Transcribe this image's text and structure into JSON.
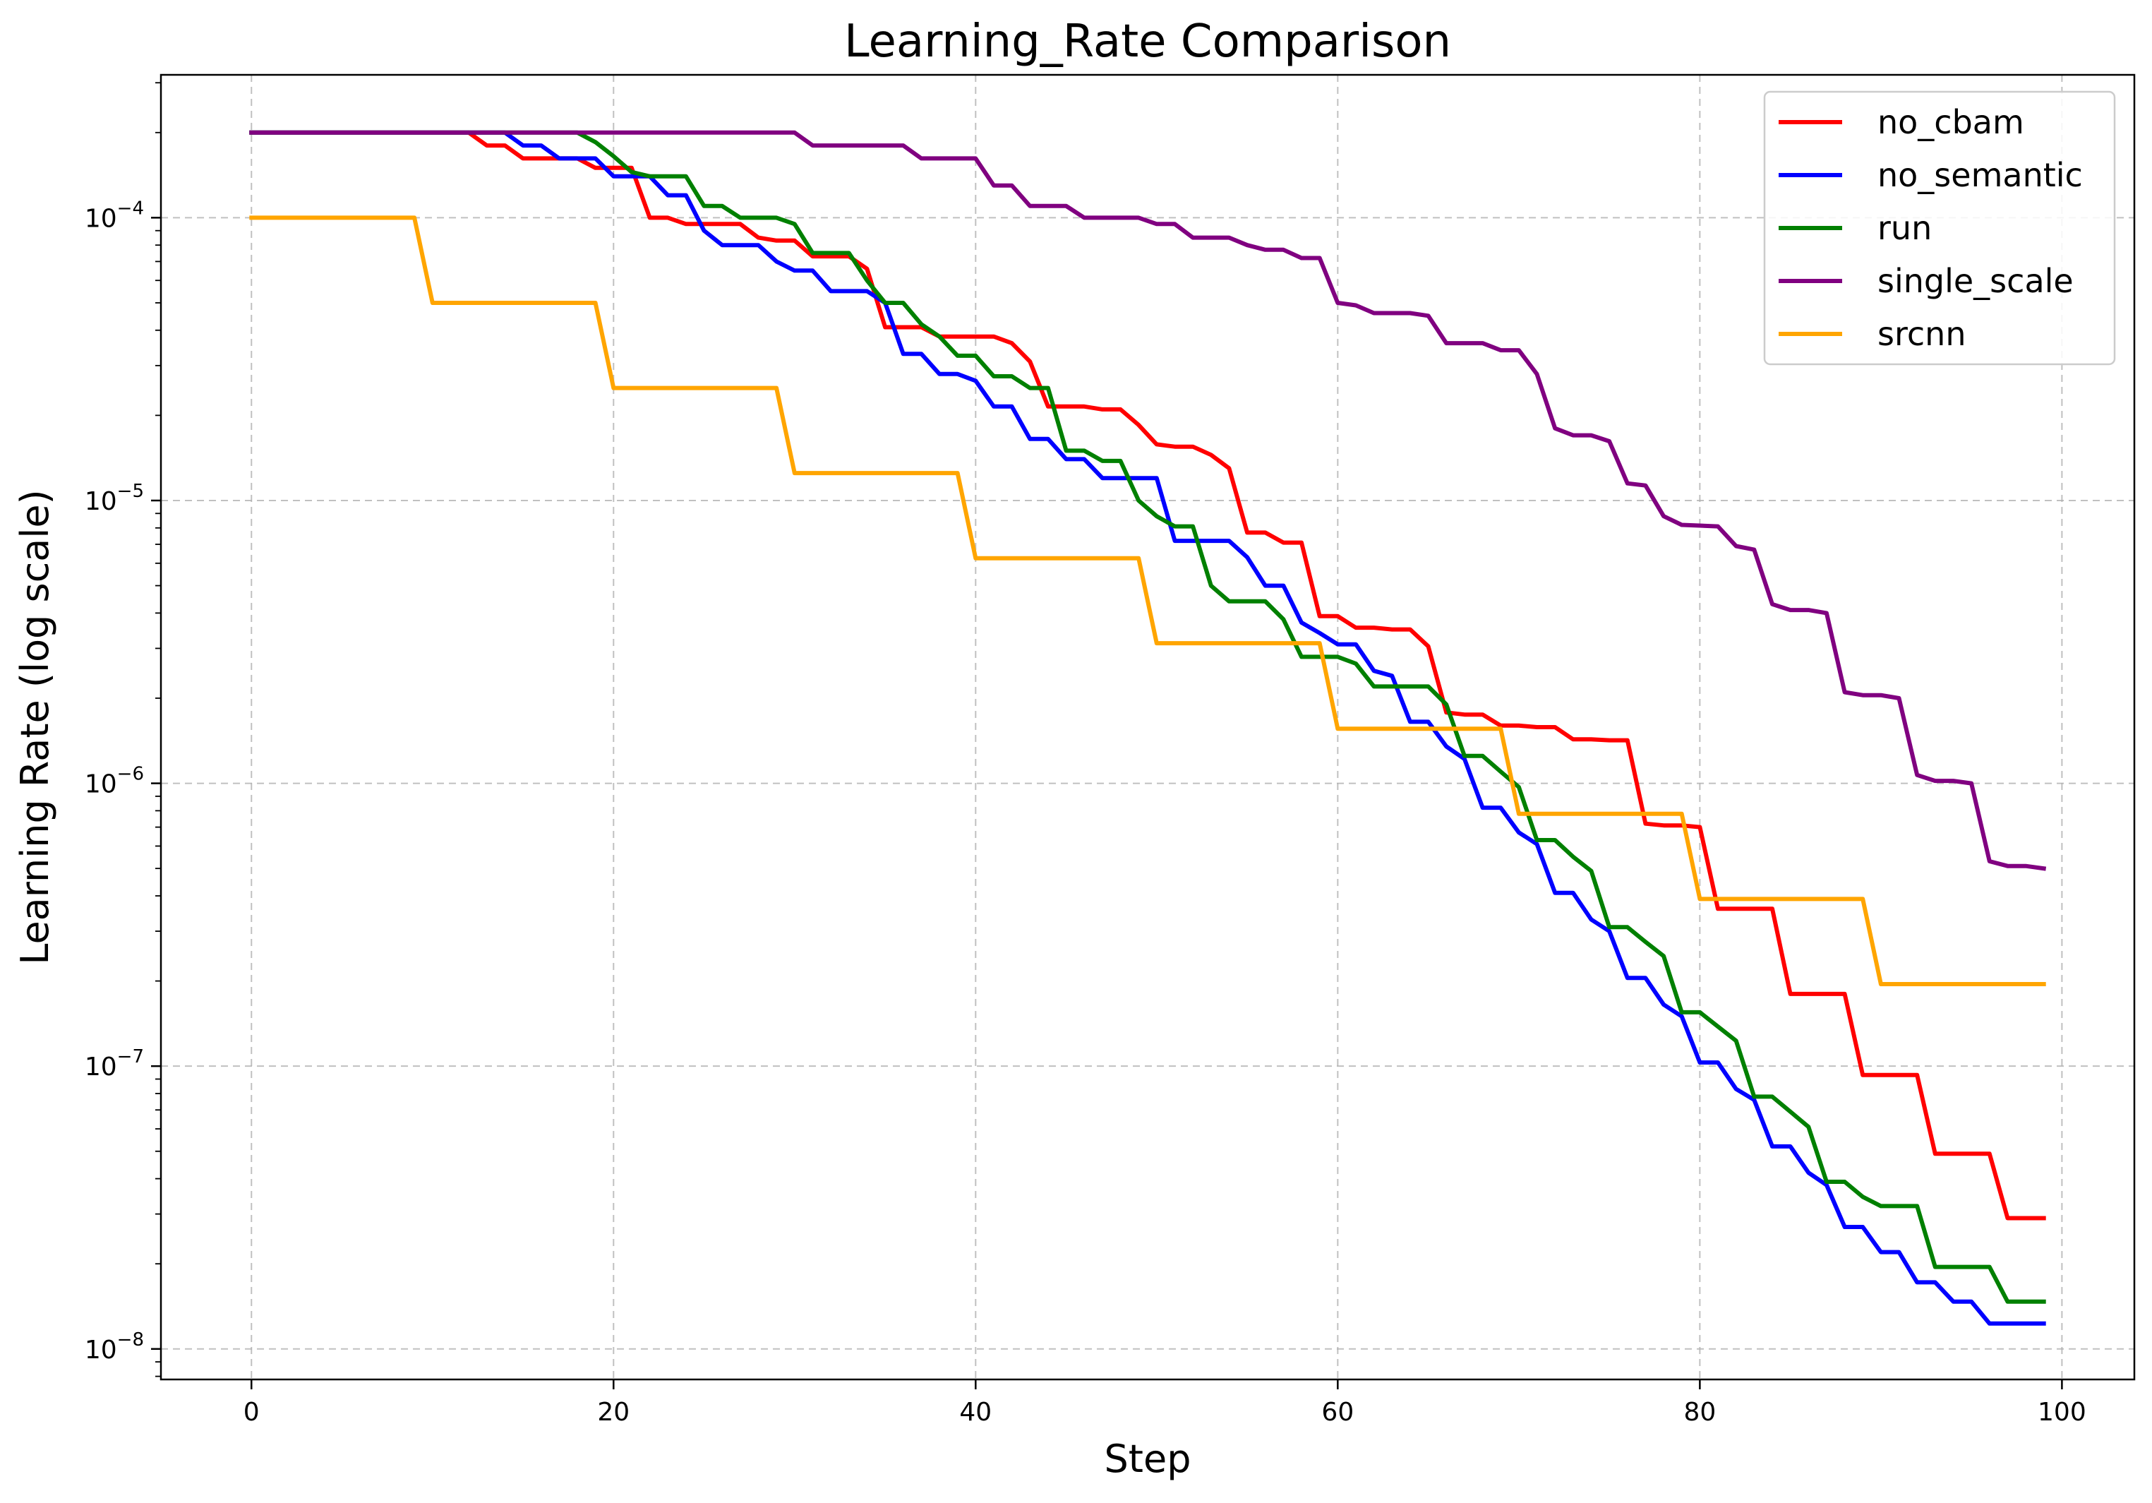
{
  "chart_data": {
    "type": "line",
    "title": "Learning_Rate Comparison",
    "xlabel": "Step",
    "ylabel": "Learning Rate (log scale)",
    "yscale": "log",
    "xlim": [
      -5,
      104
    ],
    "ylim": [
      7.8e-09,
      0.00032
    ],
    "xticks": [
      0,
      20,
      40,
      60,
      80,
      100
    ],
    "xtick_labels": [
      "0",
      "20",
      "40",
      "60",
      "80",
      "100"
    ],
    "yticks": [
      1e-08,
      1e-07,
      1e-06,
      1e-05,
      0.0001
    ],
    "ytick_labels": [
      {
        "base": "10",
        "exp": "−8"
      },
      {
        "base": "10",
        "exp": "−7"
      },
      {
        "base": "10",
        "exp": "−6"
      },
      {
        "base": "10",
        "exp": "−5"
      },
      {
        "base": "10",
        "exp": "−4"
      }
    ],
    "grid": true,
    "legend_position": "top-right",
    "series": [
      {
        "name": "no_cbam",
        "color": "#ff0000",
        "points": [
          [
            0,
            0.0002
          ],
          [
            12,
            0.0002
          ],
          [
            13,
            0.00018
          ],
          [
            14,
            0.00018
          ],
          [
            15,
            0.000162
          ],
          [
            17,
            0.000162
          ],
          [
            18,
            0.000162
          ],
          [
            19,
            0.00015
          ],
          [
            20,
            0.00015
          ],
          [
            21,
            0.00015
          ],
          [
            22,
            0.0001
          ],
          [
            23,
            0.0001
          ],
          [
            24,
            9.5e-05
          ],
          [
            27,
            9.5e-05
          ],
          [
            28,
            8.5e-05
          ],
          [
            29,
            8.3e-05
          ],
          [
            30,
            8.3e-05
          ],
          [
            31,
            7.3e-05
          ],
          [
            33,
            7.3e-05
          ],
          [
            34,
            6.6e-05
          ],
          [
            35,
            4.1e-05
          ],
          [
            37,
            4.1e-05
          ],
          [
            38,
            3.8e-05
          ],
          [
            41,
            3.8e-05
          ],
          [
            42,
            3.6e-05
          ],
          [
            43,
            3.1e-05
          ],
          [
            44,
            2.15e-05
          ],
          [
            46,
            2.15e-05
          ],
          [
            47,
            2.1e-05
          ],
          [
            48,
            2.1e-05
          ],
          [
            49,
            1.85e-05
          ],
          [
            50,
            1.58e-05
          ],
          [
            51,
            1.55e-05
          ],
          [
            52,
            1.55e-05
          ],
          [
            53,
            1.45e-05
          ],
          [
            54,
            1.3e-05
          ],
          [
            55,
            7.7e-06
          ],
          [
            56,
            7.7e-06
          ],
          [
            57,
            7.1e-06
          ],
          [
            58,
            7.1e-06
          ],
          [
            59,
            3.9e-06
          ],
          [
            60,
            3.9e-06
          ],
          [
            61,
            3.55e-06
          ],
          [
            62,
            3.55e-06
          ],
          [
            63,
            3.5e-06
          ],
          [
            64,
            3.5e-06
          ],
          [
            65,
            3.05e-06
          ],
          [
            66,
            1.78e-06
          ],
          [
            67,
            1.75e-06
          ],
          [
            68,
            1.75e-06
          ],
          [
            69,
            1.6e-06
          ],
          [
            70,
            1.6e-06
          ],
          [
            71,
            1.58e-06
          ],
          [
            72,
            1.58e-06
          ],
          [
            73,
            1.43e-06
          ],
          [
            74,
            1.43e-06
          ],
          [
            75,
            1.42e-06
          ],
          [
            76,
            1.42e-06
          ],
          [
            77,
            7.2e-07
          ],
          [
            78,
            7.1e-07
          ],
          [
            79,
            7.1e-07
          ],
          [
            80,
            7e-07
          ],
          [
            81,
            3.6e-07
          ],
          [
            84,
            3.6e-07
          ],
          [
            85,
            1.8e-07
          ],
          [
            88,
            1.8e-07
          ],
          [
            89,
            9.3e-08
          ],
          [
            92,
            9.3e-08
          ],
          [
            93,
            4.9e-08
          ],
          [
            96,
            4.9e-08
          ],
          [
            97,
            2.9e-08
          ],
          [
            99,
            2.9e-08
          ]
        ]
      },
      {
        "name": "no_semantic",
        "color": "#0000ff",
        "points": [
          [
            0,
            0.0002
          ],
          [
            14,
            0.0002
          ],
          [
            15,
            0.00018
          ],
          [
            16,
            0.00018
          ],
          [
            17,
            0.000162
          ],
          [
            19,
            0.000162
          ],
          [
            20,
            0.00014
          ],
          [
            22,
            0.00014
          ],
          [
            23,
            0.00012
          ],
          [
            24,
            0.00012
          ],
          [
            25,
            9e-05
          ],
          [
            26,
            8e-05
          ],
          [
            28,
            8e-05
          ],
          [
            29,
            7e-05
          ],
          [
            30,
            6.5e-05
          ],
          [
            31,
            6.5e-05
          ],
          [
            32,
            5.5e-05
          ],
          [
            34,
            5.5e-05
          ],
          [
            35,
            5e-05
          ],
          [
            36,
            3.3e-05
          ],
          [
            37,
            3.3e-05
          ],
          [
            38,
            2.8e-05
          ],
          [
            39,
            2.8e-05
          ],
          [
            40,
            2.65e-05
          ],
          [
            41,
            2.15e-05
          ],
          [
            42,
            2.15e-05
          ],
          [
            43,
            1.65e-05
          ],
          [
            44,
            1.65e-05
          ],
          [
            45,
            1.4e-05
          ],
          [
            46,
            1.4e-05
          ],
          [
            47,
            1.2e-05
          ],
          [
            50,
            1.2e-05
          ],
          [
            51,
            7.2e-06
          ],
          [
            54,
            7.2e-06
          ],
          [
            55,
            6.3e-06
          ],
          [
            56,
            5e-06
          ],
          [
            57,
            5e-06
          ],
          [
            58,
            3.7e-06
          ],
          [
            59,
            3.4e-06
          ],
          [
            60,
            3.1e-06
          ],
          [
            61,
            3.1e-06
          ],
          [
            62,
            2.5e-06
          ],
          [
            63,
            2.4e-06
          ],
          [
            64,
            1.65e-06
          ],
          [
            65,
            1.65e-06
          ],
          [
            66,
            1.35e-06
          ],
          [
            67,
            1.22e-06
          ],
          [
            68,
            8.2e-07
          ],
          [
            69,
            8.2e-07
          ],
          [
            70,
            6.7e-07
          ],
          [
            71,
            6.1e-07
          ],
          [
            72,
            4.1e-07
          ],
          [
            73,
            4.1e-07
          ],
          [
            74,
            3.3e-07
          ],
          [
            75,
            3e-07
          ],
          [
            76,
            2.05e-07
          ],
          [
            77,
            2.05e-07
          ],
          [
            78,
            1.65e-07
          ],
          [
            79,
            1.5e-07
          ],
          [
            80,
            1.03e-07
          ],
          [
            81,
            1.03e-07
          ],
          [
            82,
            8.3e-08
          ],
          [
            83,
            7.6e-08
          ],
          [
            84,
            5.2e-08
          ],
          [
            85,
            5.2e-08
          ],
          [
            86,
            4.2e-08
          ],
          [
            87,
            3.8e-08
          ],
          [
            88,
            2.7e-08
          ],
          [
            89,
            2.7e-08
          ],
          [
            90,
            2.2e-08
          ],
          [
            91,
            2.2e-08
          ],
          [
            92,
            1.72e-08
          ],
          [
            93,
            1.72e-08
          ],
          [
            94,
            1.47e-08
          ],
          [
            95,
            1.47e-08
          ],
          [
            96,
            1.23e-08
          ],
          [
            99,
            1.23e-08
          ]
        ]
      },
      {
        "name": "run",
        "color": "#008000",
        "points": [
          [
            0,
            0.0002
          ],
          [
            18,
            0.0002
          ],
          [
            19,
            0.000185
          ],
          [
            20,
            0.000165
          ],
          [
            21,
            0.000145
          ],
          [
            22,
            0.00014
          ],
          [
            24,
            0.00014
          ],
          [
            25,
            0.00011
          ],
          [
            26,
            0.00011
          ],
          [
            27,
            0.0001
          ],
          [
            29,
            0.0001
          ],
          [
            30,
            9.5e-05
          ],
          [
            31,
            7.5e-05
          ],
          [
            33,
            7.5e-05
          ],
          [
            34,
            6e-05
          ],
          [
            35,
            5e-05
          ],
          [
            36,
            5e-05
          ],
          [
            37,
            4.2e-05
          ],
          [
            38,
            3.8e-05
          ],
          [
            39,
            3.25e-05
          ],
          [
            40,
            3.25e-05
          ],
          [
            41,
            2.75e-05
          ],
          [
            42,
            2.75e-05
          ],
          [
            43,
            2.5e-05
          ],
          [
            44,
            2.5e-05
          ],
          [
            45,
            1.5e-05
          ],
          [
            46,
            1.5e-05
          ],
          [
            47,
            1.38e-05
          ],
          [
            48,
            1.38e-05
          ],
          [
            49,
            1e-05
          ],
          [
            50,
            8.8e-06
          ],
          [
            51,
            8.1e-06
          ],
          [
            52,
            8.1e-06
          ],
          [
            53,
            5e-06
          ],
          [
            54,
            4.4e-06
          ],
          [
            56,
            4.4e-06
          ],
          [
            57,
            3.8e-06
          ],
          [
            58,
            2.8e-06
          ],
          [
            60,
            2.8e-06
          ],
          [
            61,
            2.65e-06
          ],
          [
            62,
            2.2e-06
          ],
          [
            65,
            2.2e-06
          ],
          [
            66,
            1.9e-06
          ],
          [
            67,
            1.25e-06
          ],
          [
            68,
            1.25e-06
          ],
          [
            69,
            1.1e-06
          ],
          [
            70,
            9.7e-07
          ],
          [
            71,
            6.3e-07
          ],
          [
            72,
            6.3e-07
          ],
          [
            73,
            5.5e-07
          ],
          [
            74,
            4.9e-07
          ],
          [
            75,
            3.1e-07
          ],
          [
            76,
            3.1e-07
          ],
          [
            77,
            2.75e-07
          ],
          [
            78,
            2.45e-07
          ],
          [
            79,
            1.55e-07
          ],
          [
            80,
            1.55e-07
          ],
          [
            81,
            1.38e-07
          ],
          [
            82,
            1.23e-07
          ],
          [
            83,
            7.8e-08
          ],
          [
            84,
            7.8e-08
          ],
          [
            85,
            6.9e-08
          ],
          [
            86,
            6.1e-08
          ],
          [
            87,
            3.9e-08
          ],
          [
            88,
            3.9e-08
          ],
          [
            89,
            3.45e-08
          ],
          [
            90,
            3.2e-08
          ],
          [
            92,
            3.2e-08
          ],
          [
            93,
            1.95e-08
          ],
          [
            96,
            1.95e-08
          ],
          [
            97,
            1.47e-08
          ],
          [
            99,
            1.47e-08
          ]
        ]
      },
      {
        "name": "single_scale",
        "color": "#800080",
        "points": [
          [
            0,
            0.0002
          ],
          [
            30,
            0.0002
          ],
          [
            31,
            0.00018
          ],
          [
            36,
            0.00018
          ],
          [
            37,
            0.000162
          ],
          [
            40,
            0.000162
          ],
          [
            41,
            0.00013
          ],
          [
            42,
            0.00013
          ],
          [
            43,
            0.00011
          ],
          [
            45,
            0.00011
          ],
          [
            46,
            0.0001
          ],
          [
            49,
            0.0001
          ],
          [
            50,
            9.5e-05
          ],
          [
            51,
            9.5e-05
          ],
          [
            52,
            8.5e-05
          ],
          [
            54,
            8.5e-05
          ],
          [
            55,
            8e-05
          ],
          [
            56,
            7.7e-05
          ],
          [
            57,
            7.7e-05
          ],
          [
            58,
            7.2e-05
          ],
          [
            59,
            7.2e-05
          ],
          [
            60,
            5e-05
          ],
          [
            61,
            4.9e-05
          ],
          [
            62,
            4.6e-05
          ],
          [
            64,
            4.6e-05
          ],
          [
            65,
            4.5e-05
          ],
          [
            66,
            3.6e-05
          ],
          [
            68,
            3.6e-05
          ],
          [
            69,
            3.4e-05
          ],
          [
            70,
            3.4e-05
          ],
          [
            71,
            2.8e-05
          ],
          [
            72,
            1.8e-05
          ],
          [
            73,
            1.7e-05
          ],
          [
            74,
            1.7e-05
          ],
          [
            75,
            1.62e-05
          ],
          [
            76,
            1.15e-05
          ],
          [
            77,
            1.13e-05
          ],
          [
            78,
            8.8e-06
          ],
          [
            79,
            8.2e-06
          ],
          [
            81,
            8.1e-06
          ],
          [
            82,
            6.9e-06
          ],
          [
            83,
            6.7e-06
          ],
          [
            84,
            4.3e-06
          ],
          [
            85,
            4.1e-06
          ],
          [
            86,
            4.1e-06
          ],
          [
            87,
            4e-06
          ],
          [
            88,
            2.1e-06
          ],
          [
            89,
            2.05e-06
          ],
          [
            90,
            2.05e-06
          ],
          [
            91,
            2e-06
          ],
          [
            92,
            1.07e-06
          ],
          [
            93,
            1.02e-06
          ],
          [
            94,
            1.02e-06
          ],
          [
            95,
            1e-06
          ],
          [
            96,
            5.3e-07
          ],
          [
            97,
            5.1e-07
          ],
          [
            98,
            5.1e-07
          ],
          [
            99,
            5e-07
          ]
        ]
      },
      {
        "name": "srcnn",
        "color": "#ffa500",
        "points": [
          [
            0,
            0.0001
          ],
          [
            9,
            0.0001
          ],
          [
            10,
            5e-05
          ],
          [
            19,
            5e-05
          ],
          [
            20,
            2.5e-05
          ],
          [
            29,
            2.5e-05
          ],
          [
            30,
            1.25e-05
          ],
          [
            39,
            1.25e-05
          ],
          [
            40,
            6.25e-06
          ],
          [
            49,
            6.25e-06
          ],
          [
            50,
            3.13e-06
          ],
          [
            59,
            3.13e-06
          ],
          [
            60,
            1.56e-06
          ],
          [
            69,
            1.56e-06
          ],
          [
            70,
            7.8e-07
          ],
          [
            79,
            7.8e-07
          ],
          [
            80,
            3.9e-07
          ],
          [
            89,
            3.9e-07
          ],
          [
            90,
            1.95e-07
          ],
          [
            99,
            1.95e-07
          ]
        ]
      }
    ]
  }
}
